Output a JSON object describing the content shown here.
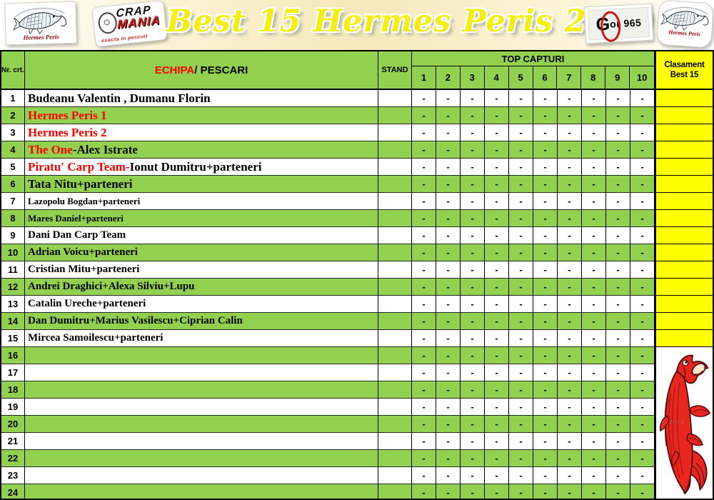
{
  "banner": {
    "title": "Best 15 Hermes Peris 2019",
    "logo_hermes_left": "Hermes Peris",
    "logo_hermes_right": "Hermes Peris",
    "logo_crap_mania": {
      "word1": "CRAP",
      "word2": "MANIA",
      "tagline": "exacta in pescuit"
    },
    "logo_radio": {
      "g": "G",
      "rest": "or 965"
    }
  },
  "table": {
    "col_nr": "Nr. crt.",
    "col_team_red": "ECHIPA",
    "col_team_black": " / PESCARI",
    "col_stand": "STAND",
    "col_captures": "TOP CAPTURI",
    "capture_numbers": [
      "1",
      "2",
      "3",
      "4",
      "5",
      "6",
      "7",
      "8",
      "9",
      "10"
    ],
    "col_rank": "Clasament Best 15",
    "dash": "-",
    "rows": [
      {
        "nr": "1",
        "variant": "lg",
        "name": [
          {
            "text": "Budeanu Valentin , Dumanu Florin",
            "color": "#000000"
          }
        ]
      },
      {
        "nr": "2",
        "variant": "lg",
        "name": [
          {
            "text": "Hermes Peris 1",
            "color": "#ff0000"
          }
        ]
      },
      {
        "nr": "3",
        "variant": "lg",
        "name": [
          {
            "text": "Hermes Peris 2",
            "color": "#ff0000"
          }
        ]
      },
      {
        "nr": "4",
        "variant": "lg",
        "name": [
          {
            "text": "The One",
            "color": "#ff0000"
          },
          {
            "text": "-Alex Istrate",
            "color": "#000000"
          }
        ]
      },
      {
        "nr": "5",
        "variant": "lg",
        "name": [
          {
            "text": "Piratu' Carp Team-",
            "color": "#ff0000"
          },
          {
            "text": "Ionut Dumitru+parteneri",
            "color": "#000000"
          }
        ]
      },
      {
        "nr": "6",
        "variant": "lg",
        "name": [
          {
            "text": "Tata Nitu+parteneri",
            "color": "#000000"
          }
        ]
      },
      {
        "nr": "7",
        "variant": "sm",
        "name": [
          {
            "text": "Lazopolu Bogdan+parteneri",
            "color": "#000000"
          }
        ]
      },
      {
        "nr": "8",
        "variant": "sm",
        "name": [
          {
            "text": "Mares Daniel+parteneri",
            "color": "#000000"
          }
        ]
      },
      {
        "nr": "9",
        "variant": "sans",
        "name": [
          {
            "text": "Dani Dan Carp Team",
            "color": "#000000"
          }
        ]
      },
      {
        "nr": "10",
        "variant": "md",
        "name": [
          {
            "text": "Adrian Voicu+parteneri",
            "color": "#000000"
          }
        ]
      },
      {
        "nr": "11",
        "variant": "md",
        "name": [
          {
            "text": "Cristian Mitu+parteneri",
            "color": "#000000"
          }
        ]
      },
      {
        "nr": "12",
        "variant": "md",
        "name": [
          {
            "text": "Andrei Draghici+Alexa Silviu+Lupu",
            "color": "#000000"
          }
        ]
      },
      {
        "nr": "13",
        "variant": "md",
        "name": [
          {
            "text": "Catalin Ureche+parteneri",
            "color": "#000000"
          }
        ]
      },
      {
        "nr": "14",
        "variant": "md",
        "name": [
          {
            "text": "Dan Dumitru+Marius Vasilescu+Ciprian Calin",
            "color": "#000000"
          }
        ]
      },
      {
        "nr": "15",
        "variant": "md",
        "name": [
          {
            "text": "Mircea Samoilescu+parteneri",
            "color": "#000000"
          }
        ]
      },
      {
        "nr": "16",
        "variant": "md",
        "name": []
      },
      {
        "nr": "17",
        "variant": "md",
        "name": []
      },
      {
        "nr": "18",
        "variant": "md",
        "name": []
      },
      {
        "nr": "19",
        "variant": "md",
        "name": []
      },
      {
        "nr": "20",
        "variant": "md",
        "name": []
      },
      {
        "nr": "21",
        "variant": "md",
        "name": []
      },
      {
        "nr": "22",
        "variant": "md",
        "name": []
      },
      {
        "nr": "23",
        "variant": "md",
        "name": []
      },
      {
        "nr": "24",
        "variant": "md",
        "name": []
      }
    ]
  },
  "fish_panel": {
    "watermark": "stock"
  },
  "colors": {
    "row_green": "#92d050",
    "rank_yellow": "#ffff00",
    "text_red": "#ff0000",
    "title_yellow": "#f3ef12"
  }
}
